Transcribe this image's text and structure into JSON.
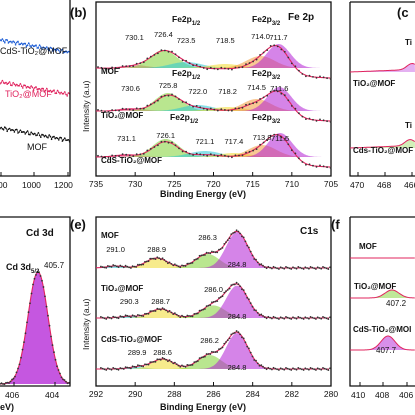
{
  "colors": {
    "blue": "#1f5fd6",
    "red": "#e0245e",
    "black": "#111111",
    "grey": "#8a8a8a",
    "purple": "#b21fd6",
    "pink": "#ec4d8d",
    "cyan": "#29c7d6",
    "green": "#7fd133",
    "yellow": "#f0da2e",
    "orange": "#f39a3a"
  },
  "panels": {
    "a": {
      "series_labels": [
        "CdS-TiO₂@MOF",
        "TiO₂@MOF",
        "MOF"
      ],
      "xticks": [
        "00",
        "1000",
        "1200"
      ]
    },
    "b": {
      "letter": "(b)",
      "tag": "Fe 2p",
      "xlabel": "Binding Energy (eV)",
      "ylabel": "Intensity (a.u)",
      "xticks": [
        "735",
        "730",
        "725",
        "720",
        "715",
        "710",
        "705"
      ],
      "samples": [
        "MOF",
        "TiO₂@MOF",
        "CdS-TiO₂@MOF"
      ],
      "peak_names": [
        "Fe2p1/2",
        "Fe2p3/2"
      ]
    },
    "c": {
      "letter": "(c",
      "samples": [
        "TiO₂@MOF",
        "Cds-TiO₂@MOF"
      ],
      "peak_fragments": [
        "Ti",
        "Ti"
      ],
      "xticks": [
        "470",
        "468",
        "466"
      ]
    },
    "d": {
      "tag": "Cd 3d",
      "peak_label": "Cd 3d5/2",
      "peak_value": "405.7",
      "xticks": [
        "406",
        "404"
      ],
      "xlabel_fragment": "eV)"
    },
    "e": {
      "letter": "(e)",
      "tag": "C1s",
      "xlabel": "Binding Energy (eV)",
      "ylabel": "Intensity (a.u)",
      "xticks": [
        "292",
        "290",
        "288",
        "286",
        "284",
        "282",
        "280"
      ],
      "samples": [
        "MOF",
        "TiO₂@MOF",
        "CdS-TiO₂@MOF"
      ]
    },
    "f": {
      "letter": "(f",
      "samples": [
        "MOF",
        "TiO₂@MOF",
        "CdS-TiO₂@MOI"
      ],
      "peak_values": [
        "407.2",
        "407.7"
      ],
      "xticks": [
        "410",
        "408",
        "406"
      ]
    }
  },
  "chart_data": [
    {
      "panel": "b",
      "type": "line",
      "title": "Fe 2p",
      "xlabel": "Binding Energy (eV)",
      "ylabel": "Intensity (a.u)",
      "xlim": [
        735,
        705
      ],
      "series": [
        {
          "name": "MOF",
          "peaks": [
            730.1,
            726.4,
            723.5,
            718.5,
            714.0,
            711.7
          ]
        },
        {
          "name": "TiO₂@MOF",
          "peaks": [
            730.6,
            725.8,
            722.0,
            718.2,
            714.5,
            711.6
          ]
        },
        {
          "name": "CdS-TiO₂@MOF",
          "peaks": [
            731.1,
            726.1,
            721.1,
            717.4,
            713.8,
            711.5
          ]
        }
      ]
    },
    {
      "panel": "e",
      "type": "line",
      "title": "C1s",
      "xlabel": "Binding Energy (eV)",
      "ylabel": "Intensity (a.u)",
      "xlim": [
        292,
        280
      ],
      "series": [
        {
          "name": "MOF",
          "peaks": [
            291.0,
            288.9,
            286.3,
            284.8
          ]
        },
        {
          "name": "TiO₂@MOF",
          "peaks": [
            290.3,
            288.7,
            286.0,
            284.8
          ]
        },
        {
          "name": "CdS-TiO₂@MOF",
          "peaks": [
            289.9,
            288.6,
            286.2,
            284.8
          ]
        }
      ]
    },
    {
      "panel": "d",
      "type": "line",
      "title": "Cd 3d",
      "series": [
        {
          "name": "Cd 3d5/2",
          "peaks": [
            405.7
          ]
        }
      ]
    },
    {
      "panel": "f",
      "type": "line",
      "series": [
        {
          "name": "TiO₂@MOF",
          "peaks": [
            407.2
          ]
        },
        {
          "name": "CdS-TiO₂@MOI",
          "peaks": [
            407.7
          ]
        }
      ]
    }
  ]
}
